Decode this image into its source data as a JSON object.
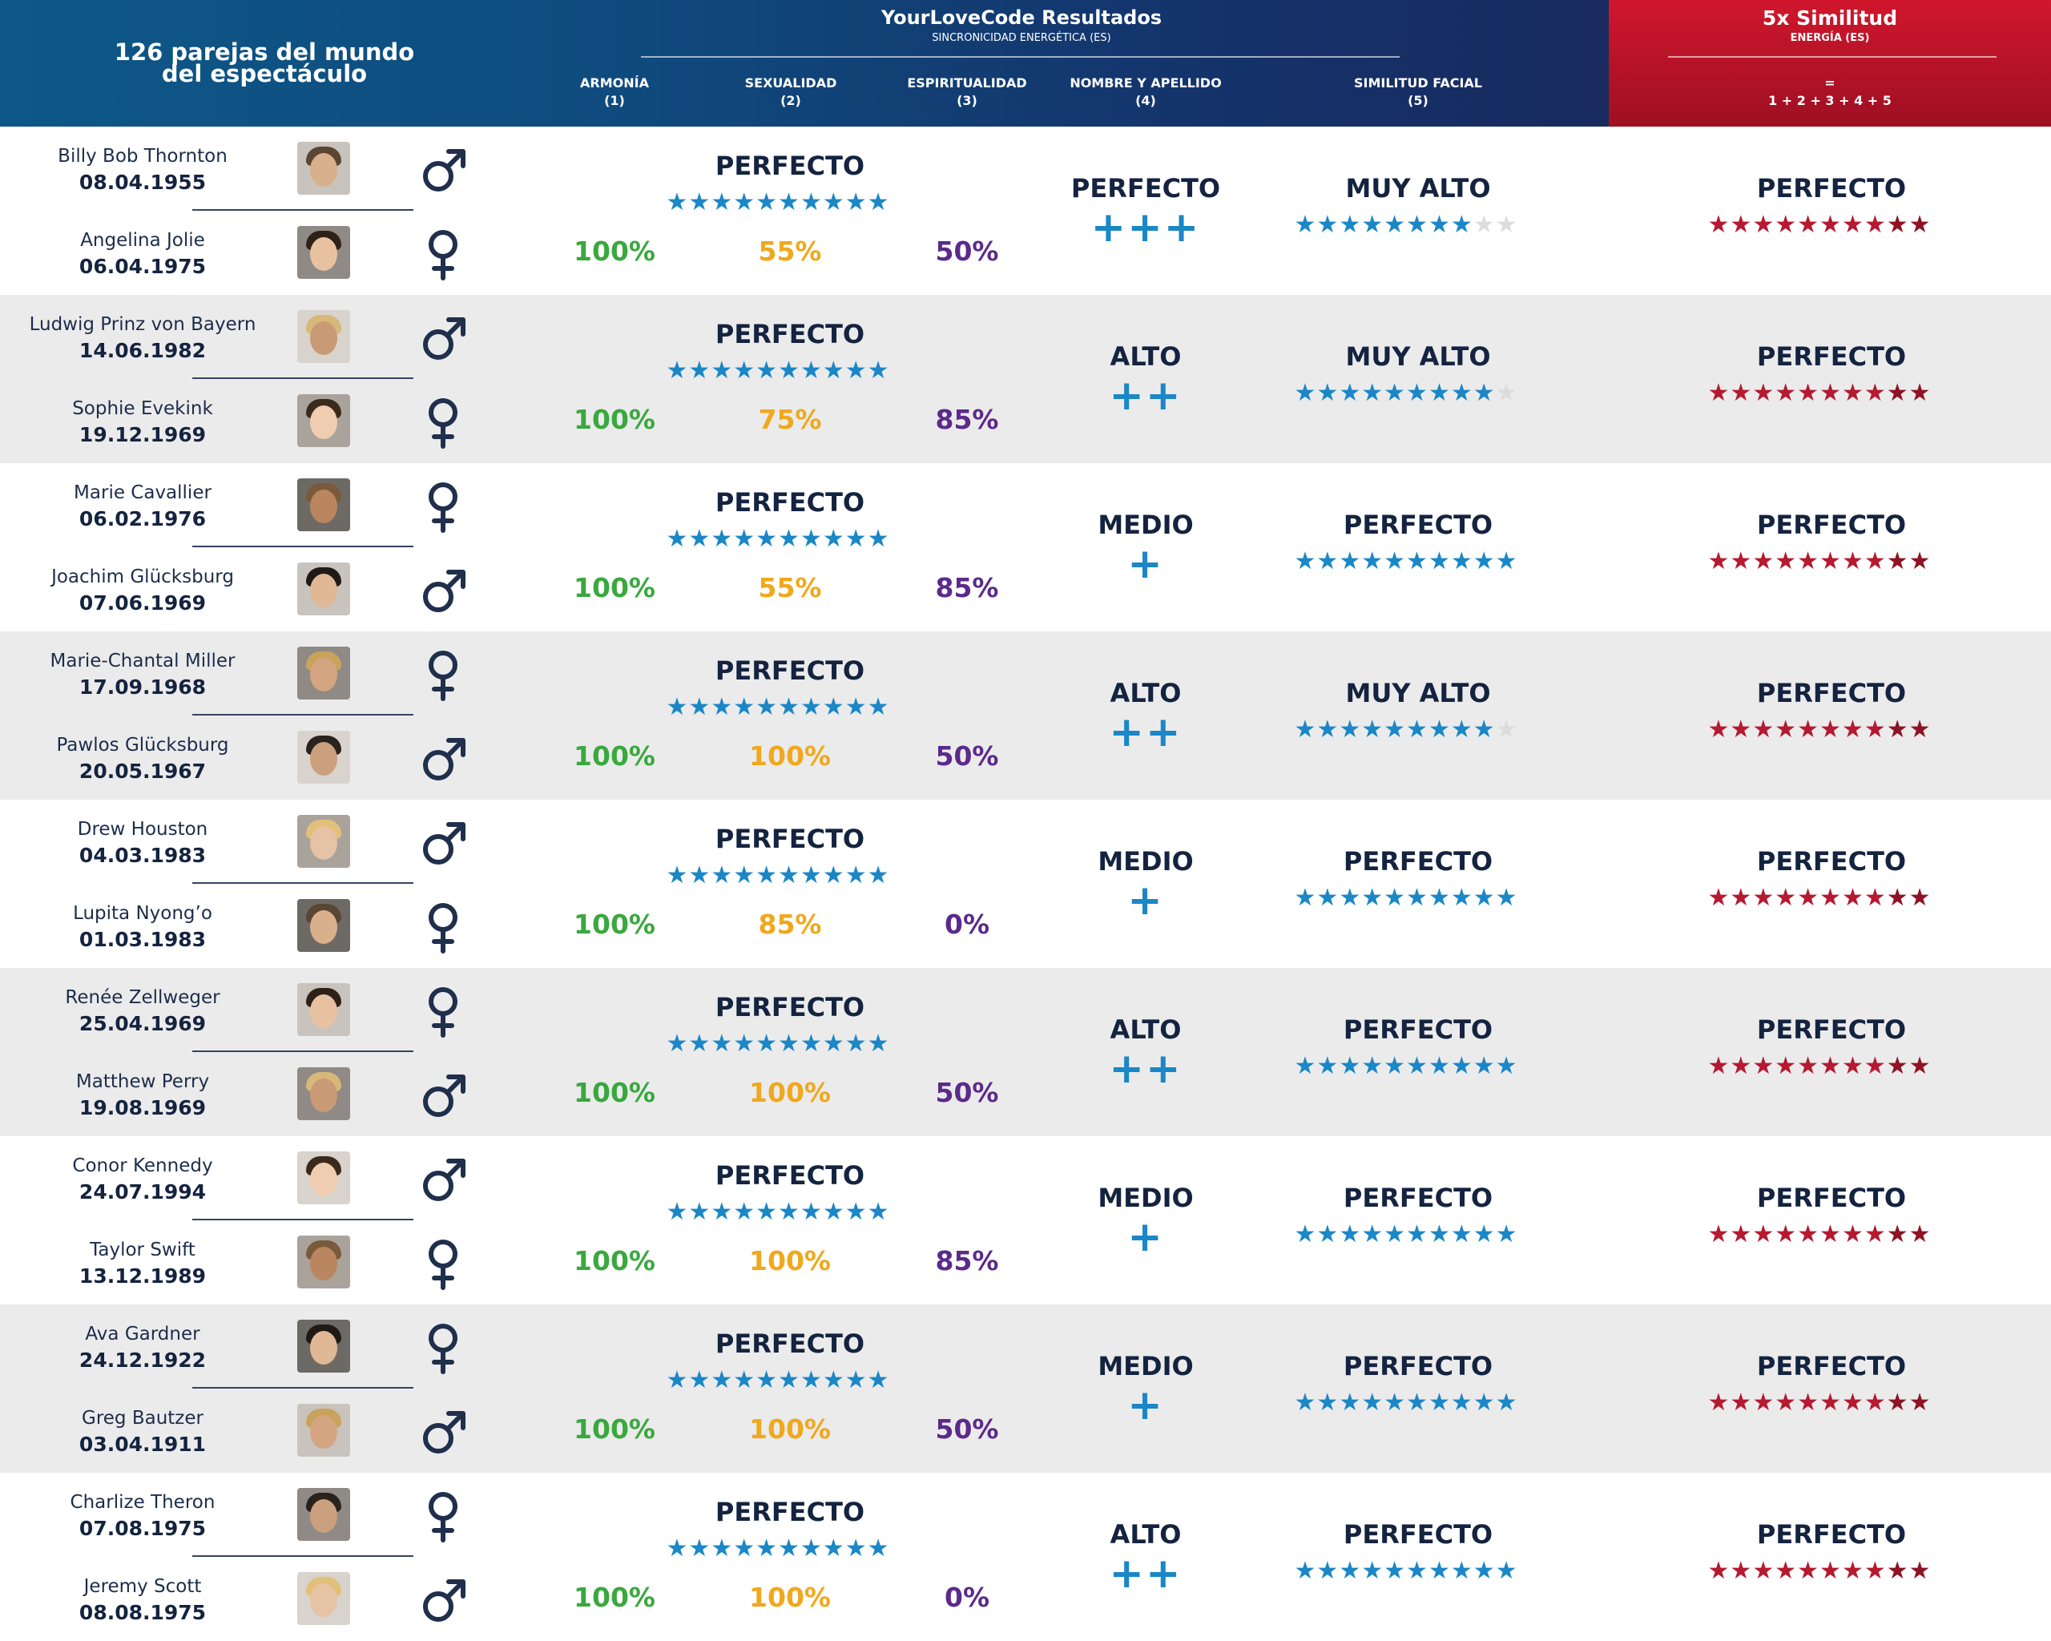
{
  "header": {
    "left_title_line1": "126 parejas del mundo",
    "left_title_line2": "del espectáculo",
    "main_title": "YourLoveCode Resultados",
    "main_subtitle": "SINCRONICIDAD ENERGÉTICA (ES)",
    "columns": [
      {
        "label": "ARMONÍA",
        "num": "(1)"
      },
      {
        "label": "SEXUALIDAD",
        "num": "(2)"
      },
      {
        "label": "ESPIRITUALIDAD",
        "num": "(3)"
      },
      {
        "label": "NOMBRE Y APELLIDO",
        "num": "(4)"
      },
      {
        "label": "SIMILITUD FACIAL",
        "num": "(5)"
      }
    ],
    "right_title": "5x Similitud",
    "right_subtitle": "ENERGÍA (ES)",
    "right_eq": "=",
    "right_formula": "1 + 2 + 3 + 4 + 5"
  },
  "colors": {
    "header_blue": "#0f4a7d",
    "header_red": "#b21227",
    "green": "#3aa83e",
    "orange": "#f0a81c",
    "purple": "#5b2a8a",
    "star_blue": "#1b87c6",
    "star_red": "#b51a30",
    "star_darkred": "#8e1324",
    "star_gray": "#dcdcdc",
    "navy": "#14233f"
  },
  "icons": {
    "male": "male-symbol-icon",
    "female": "female-symbol-icon",
    "star": "star-icon",
    "plus": "plus-icon"
  },
  "pairs": [
    {
      "p1": {
        "name": "Billy Bob Thornton",
        "date": "08.04.1955",
        "gender": "male"
      },
      "p2": {
        "name": "Angelina Jolie",
        "date": "06.04.1975",
        "gender": "female"
      },
      "energy_label": "PERFECTO",
      "energy_stars": 10,
      "armonia": "100%",
      "sexualidad": "55%",
      "espiritualidad": "50%",
      "nombre_label": "PERFECTO",
      "nombre_plus": "+++",
      "facial_label": "MUY ALTO",
      "facial_stars": 8,
      "total_label": "PERFECTO",
      "total_stars": 10
    },
    {
      "p1": {
        "name": "Ludwig Prinz von Bayern",
        "date": "14.06.1982",
        "gender": "male"
      },
      "p2": {
        "name": "Sophie Evekink",
        "date": "19.12.1969",
        "gender": "female"
      },
      "energy_label": "PERFECTO",
      "energy_stars": 10,
      "armonia": "100%",
      "sexualidad": "75%",
      "espiritualidad": "85%",
      "nombre_label": "ALTO",
      "nombre_plus": "++",
      "facial_label": "MUY ALTO",
      "facial_stars": 9,
      "total_label": "PERFECTO",
      "total_stars": 10
    },
    {
      "p1": {
        "name": "Marie Cavallier",
        "date": "06.02.1976",
        "gender": "female"
      },
      "p2": {
        "name": "Joachim Glücksburg",
        "date": "07.06.1969",
        "gender": "male"
      },
      "energy_label": "PERFECTO",
      "energy_stars": 10,
      "armonia": "100%",
      "sexualidad": "55%",
      "espiritualidad": "85%",
      "nombre_label": "MEDIO",
      "nombre_plus": "+",
      "facial_label": "PERFECTO",
      "facial_stars": 10,
      "total_label": "PERFECTO",
      "total_stars": 10
    },
    {
      "p1": {
        "name": "Marie-Chantal Miller",
        "date": "17.09.1968",
        "gender": "female"
      },
      "p2": {
        "name": "Pawlos Glücksburg",
        "date": "20.05.1967",
        "gender": "male"
      },
      "energy_label": "PERFECTO",
      "energy_stars": 10,
      "armonia": "100%",
      "sexualidad": "100%",
      "espiritualidad": "50%",
      "nombre_label": "ALTO",
      "nombre_plus": "++",
      "facial_label": "MUY ALTO",
      "facial_stars": 9,
      "total_label": "PERFECTO",
      "total_stars": 10
    },
    {
      "p1": {
        "name": "Drew Houston",
        "date": "04.03.1983",
        "gender": "male"
      },
      "p2": {
        "name": "Lupita Nyong’o",
        "date": "01.03.1983",
        "gender": "female"
      },
      "energy_label": "PERFECTO",
      "energy_stars": 10,
      "armonia": "100%",
      "sexualidad": "85%",
      "espiritualidad": "0%",
      "nombre_label": "MEDIO",
      "nombre_plus": "+",
      "facial_label": "PERFECTO",
      "facial_stars": 10,
      "total_label": "PERFECTO",
      "total_stars": 10
    },
    {
      "p1": {
        "name": "Renée Zellweger",
        "date": "25.04.1969",
        "gender": "female"
      },
      "p2": {
        "name": "Matthew Perry",
        "date": "19.08.1969",
        "gender": "male"
      },
      "energy_label": "PERFECTO",
      "energy_stars": 10,
      "armonia": "100%",
      "sexualidad": "100%",
      "espiritualidad": "50%",
      "nombre_label": "ALTO",
      "nombre_plus": "++",
      "facial_label": "PERFECTO",
      "facial_stars": 10,
      "total_label": "PERFECTO",
      "total_stars": 10
    },
    {
      "p1": {
        "name": "Conor Kennedy",
        "date": "24.07.1994",
        "gender": "male"
      },
      "p2": {
        "name": "Taylor Swift",
        "date": "13.12.1989",
        "gender": "female"
      },
      "energy_label": "PERFECTO",
      "energy_stars": 10,
      "armonia": "100%",
      "sexualidad": "100%",
      "espiritualidad": "85%",
      "nombre_label": "MEDIO",
      "nombre_plus": "+",
      "facial_label": "PERFECTO",
      "facial_stars": 10,
      "total_label": "PERFECTO",
      "total_stars": 10
    },
    {
      "p1": {
        "name": "Ava Gardner",
        "date": "24.12.1922",
        "gender": "female"
      },
      "p2": {
        "name": "Greg Bautzer",
        "date": "03.04.1911",
        "gender": "male"
      },
      "energy_label": "PERFECTO",
      "energy_stars": 10,
      "armonia": "100%",
      "sexualidad": "100%",
      "espiritualidad": "50%",
      "nombre_label": "MEDIO",
      "nombre_plus": "+",
      "facial_label": "PERFECTO",
      "facial_stars": 10,
      "total_label": "PERFECTO",
      "total_stars": 10
    },
    {
      "p1": {
        "name": "Charlize Theron",
        "date": "07.08.1975",
        "gender": "female"
      },
      "p2": {
        "name": "Jeremy Scott",
        "date": "08.08.1975",
        "gender": "male"
      },
      "energy_label": "PERFECTO",
      "energy_stars": 10,
      "armonia": "100%",
      "sexualidad": "100%",
      "espiritualidad": "0%",
      "nombre_label": "ALTO",
      "nombre_plus": "++",
      "facial_label": "PERFECTO",
      "facial_stars": 10,
      "total_label": "PERFECTO",
      "total_stars": 10
    }
  ]
}
